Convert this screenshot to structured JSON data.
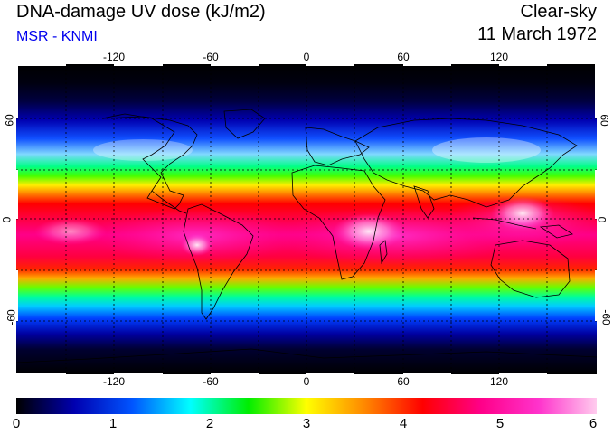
{
  "header": {
    "title": "DNA-damage UV dose (kJ/m2)",
    "source": "MSR - KNMI",
    "sky": "Clear-sky",
    "date": "11 March 1972"
  },
  "axes": {
    "lon_ticks": [
      "-120",
      "-60",
      "0",
      "60",
      "120"
    ],
    "lat_ticks": [
      "60",
      "0",
      "-60"
    ]
  },
  "colorbar": {
    "ticks": [
      "0",
      "1",
      "2",
      "3",
      "4",
      "5",
      "6"
    ],
    "colors": [
      "#000000",
      "#0000b0",
      "#0055ff",
      "#00ffff",
      "#00ee00",
      "#ffff00",
      "#ff8800",
      "#ff0000",
      "#ff0088",
      "#ff33cc",
      "#ffccee"
    ]
  },
  "colors": {
    "source_text": "#0000ee",
    "grid_line": "#000000",
    "coast": "#000000"
  }
}
